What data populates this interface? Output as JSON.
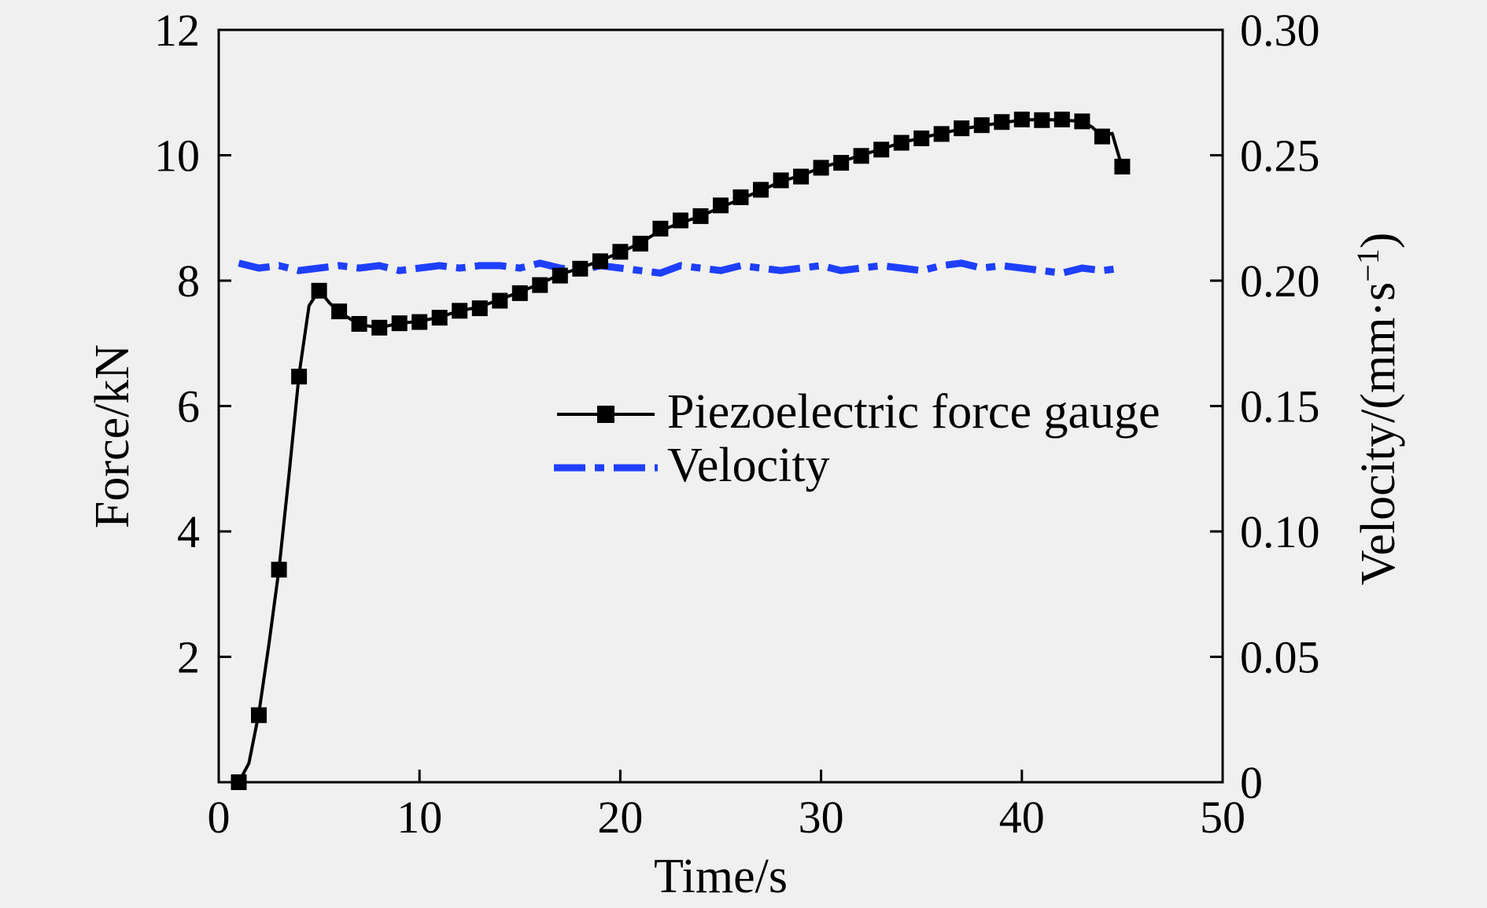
{
  "chart_data": {
    "type": "line",
    "title": "",
    "xlabel": "Time/s",
    "ylabel_left": "Force/kN",
    "ylabel_right_main": "Velocity/(mm·s",
    "ylabel_right_sup": "−1",
    "ylabel_right_close": ")",
    "xlim": [
      0,
      50
    ],
    "ylim_left": [
      0,
      12
    ],
    "ylim_right": [
      0,
      0.3
    ],
    "xticks": [
      0,
      10,
      20,
      30,
      40,
      50
    ],
    "xtick_labels": [
      "0",
      "10",
      "20",
      "30",
      "40",
      "50"
    ],
    "yticks_left": [
      2,
      4,
      6,
      8,
      10,
      12
    ],
    "ytick_labels_left": [
      "2",
      "4",
      "6",
      "8",
      "10",
      "12"
    ],
    "yticks_right": [
      0,
      0.05,
      0.1,
      0.15,
      0.2,
      0.25,
      0.3
    ],
    "ytick_labels_right": [
      "0",
      "0.05",
      "0.10",
      "0.15",
      "0.20",
      "0.25",
      "0.30"
    ],
    "grid": false,
    "legend_position": "center-right",
    "series": [
      {
        "name": "Piezoelectric force gauge",
        "axis": "left",
        "color": "#000000",
        "line": "solid",
        "marker": "square",
        "x": [
          1,
          1.5,
          2,
          2.5,
          3,
          3.5,
          4,
          4.5,
          5,
          5.5,
          6,
          7,
          8,
          9,
          10,
          11,
          12,
          13,
          14,
          15,
          16,
          17,
          18,
          19,
          20,
          21,
          22,
          23,
          24,
          25,
          26,
          27,
          28,
          29,
          30,
          31,
          32,
          33,
          34,
          35,
          36,
          37,
          38,
          39,
          40,
          41,
          42,
          43,
          43.5,
          44,
          44.5,
          45
        ],
        "y": [
          0,
          0.3,
          1.1,
          2.2,
          3.4,
          4.9,
          6.5,
          7.6,
          7.85,
          7.65,
          7.5,
          7.3,
          7.25,
          7.32,
          7.35,
          7.42,
          7.52,
          7.58,
          7.7,
          7.82,
          7.95,
          8.1,
          8.2,
          8.32,
          8.45,
          8.6,
          8.8,
          8.92,
          9.03,
          9.17,
          9.3,
          9.44,
          9.58,
          9.68,
          9.8,
          9.9,
          10.0,
          10.1,
          10.2,
          10.28,
          10.35,
          10.42,
          10.47,
          10.52,
          10.56,
          10.57,
          10.56,
          10.54,
          10.45,
          10.3,
          10.35,
          9.8
        ],
        "marker_x": [
          1,
          2,
          3,
          4,
          5,
          6,
          7,
          8,
          9,
          10,
          11,
          12,
          13,
          14,
          15,
          16,
          17,
          18,
          19,
          20,
          21,
          22,
          23,
          24,
          25,
          26,
          27,
          28,
          29,
          30,
          31,
          32,
          33,
          34,
          35,
          36,
          37,
          38,
          39,
          40,
          41,
          42,
          43,
          44,
          45
        ],
        "marker_y": [
          0,
          1.07,
          3.39,
          6.47,
          7.84,
          7.51,
          7.31,
          7.25,
          7.32,
          7.34,
          7.41,
          7.52,
          7.56,
          7.68,
          7.8,
          7.93,
          8.08,
          8.19,
          8.31,
          8.46,
          8.59,
          8.83,
          8.96,
          9.03,
          9.2,
          9.33,
          9.45,
          9.6,
          9.66,
          9.8,
          9.88,
          9.99,
          10.09,
          10.2,
          10.27,
          10.34,
          10.43,
          10.48,
          10.53,
          10.57,
          10.56,
          10.57,
          10.54,
          10.3,
          9.82
        ]
      },
      {
        "name": "Velocity",
        "axis": "right",
        "color": "#1f3fff",
        "line": "dash-dot",
        "marker": "none",
        "x": [
          1,
          2,
          3,
          4,
          5,
          6,
          7,
          8,
          9,
          10,
          11,
          12,
          13,
          14,
          15,
          16,
          17,
          18,
          19,
          20,
          21,
          22,
          23,
          24,
          25,
          26,
          27,
          28,
          29,
          30,
          31,
          32,
          33,
          34,
          35,
          36,
          37,
          38,
          39,
          40,
          41,
          42,
          43,
          44,
          45
        ],
        "y": [
          0.207,
          0.205,
          0.206,
          0.204,
          0.205,
          0.206,
          0.205,
          0.206,
          0.204,
          0.205,
          0.206,
          0.205,
          0.206,
          0.206,
          0.205,
          0.207,
          0.205,
          0.204,
          0.206,
          0.205,
          0.204,
          0.203,
          0.206,
          0.205,
          0.204,
          0.206,
          0.205,
          0.204,
          0.205,
          0.206,
          0.204,
          0.205,
          0.206,
          0.205,
          0.204,
          0.206,
          0.207,
          0.205,
          0.206,
          0.205,
          0.204,
          0.203,
          0.205,
          0.204,
          0.205
        ]
      }
    ]
  }
}
